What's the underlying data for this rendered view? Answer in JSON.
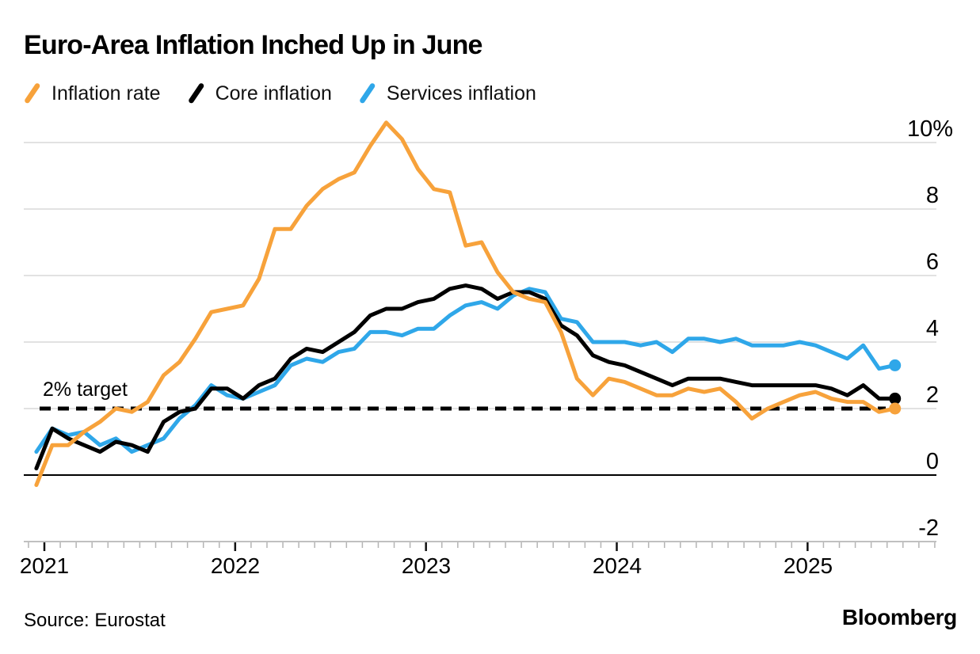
{
  "title": "Euro-Area Inflation Inched Up in June",
  "source": "Source: Eurostat",
  "brand": "Bloomberg",
  "chart_data": {
    "type": "line",
    "title": "Euro-Area Inflation Inched Up in June",
    "x_monthly_from": "2020-12",
    "x_monthly_to": "2025-06",
    "x_tick_labels": [
      "2021",
      "2022",
      "2023",
      "2024",
      "2025"
    ],
    "y_tick_labels": [
      "10%",
      "8",
      "6",
      "4",
      "2",
      "0",
      "-2"
    ],
    "y_gridline_values": [
      10,
      8,
      6,
      4,
      2,
      0,
      -2
    ],
    "ylim": [
      -2,
      11
    ],
    "unit": "percent",
    "target_label": "2% target",
    "target_value": 2,
    "legend_position": "top",
    "grid": "horizontal",
    "colors": {
      "gridline": "#D8D8D8",
      "axis": "#ABABAB",
      "zero_line": "#000000",
      "target_line": "#000000"
    },
    "series": [
      {
        "name": "Inflation rate",
        "color": "#F7A23B",
        "values": [
          -0.3,
          0.9,
          0.9,
          1.3,
          1.6,
          2.0,
          1.9,
          2.2,
          3.0,
          3.4,
          4.1,
          4.9,
          5.0,
          5.1,
          5.9,
          7.4,
          7.4,
          8.1,
          8.6,
          8.9,
          9.1,
          9.9,
          10.6,
          10.1,
          9.2,
          8.6,
          8.5,
          6.9,
          7.0,
          6.1,
          5.5,
          5.3,
          5.2,
          4.3,
          2.9,
          2.4,
          2.9,
          2.8,
          2.6,
          2.4,
          2.4,
          2.6,
          2.5,
          2.6,
          2.2,
          1.7,
          2.0,
          2.2,
          2.4,
          2.5,
          2.3,
          2.2,
          2.2,
          1.9,
          2.0
        ]
      },
      {
        "name": "Core inflation",
        "color": "#000000",
        "values": [
          0.2,
          1.4,
          1.1,
          0.9,
          0.7,
          1.0,
          0.9,
          0.7,
          1.6,
          1.9,
          2.0,
          2.6,
          2.6,
          2.3,
          2.7,
          2.9,
          3.5,
          3.8,
          3.7,
          4.0,
          4.3,
          4.8,
          5.0,
          5.0,
          5.2,
          5.3,
          5.6,
          5.7,
          5.6,
          5.3,
          5.5,
          5.5,
          5.3,
          4.5,
          4.2,
          3.6,
          3.4,
          3.3,
          3.1,
          2.9,
          2.7,
          2.9,
          2.9,
          2.9,
          2.8,
          2.7,
          2.7,
          2.7,
          2.7,
          2.7,
          2.6,
          2.4,
          2.7,
          2.3,
          2.3
        ]
      },
      {
        "name": "Services inflation",
        "color": "#2FA7E9",
        "values": [
          0.7,
          1.4,
          1.2,
          1.3,
          0.9,
          1.1,
          0.7,
          0.9,
          1.1,
          1.7,
          2.1,
          2.7,
          2.4,
          2.3,
          2.5,
          2.7,
          3.3,
          3.5,
          3.4,
          3.7,
          3.8,
          4.3,
          4.3,
          4.2,
          4.4,
          4.4,
          4.8,
          5.1,
          5.2,
          5.0,
          5.4,
          5.6,
          5.5,
          4.7,
          4.6,
          4.0,
          4.0,
          4.0,
          3.9,
          4.0,
          3.7,
          4.1,
          4.1,
          4.0,
          4.1,
          3.9,
          3.9,
          3.9,
          4.0,
          3.9,
          3.7,
          3.5,
          3.9,
          3.2,
          3.3
        ]
      }
    ]
  }
}
